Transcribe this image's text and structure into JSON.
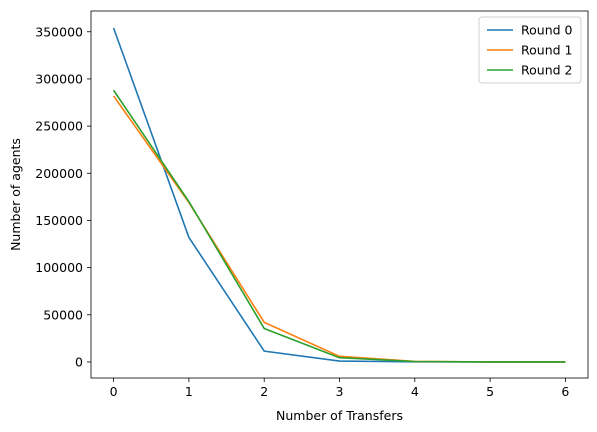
{
  "chart_data": {
    "type": "line",
    "title": "",
    "xlabel": "Number of Transfers",
    "ylabel": "Number of agents",
    "x": [
      0,
      1,
      2,
      3,
      4,
      5,
      6
    ],
    "xlim": [
      -0.3,
      6.3
    ],
    "ylim": [
      -17000,
      372000
    ],
    "xticks": [
      0,
      1,
      2,
      3,
      4,
      5,
      6
    ],
    "yticks": [
      0,
      50000,
      100000,
      150000,
      200000,
      250000,
      300000,
      350000
    ],
    "grid": false,
    "legend_position": "top-right",
    "series": [
      {
        "name": "Round 0",
        "color": "#1f77b4",
        "values": [
          354000,
          132000,
          11500,
          1000,
          100,
          10,
          0
        ]
      },
      {
        "name": "Round 1",
        "color": "#ff7f0e",
        "values": [
          282000,
          169000,
          42000,
          6000,
          600,
          60,
          5
        ]
      },
      {
        "name": "Round 2",
        "color": "#2ca02c",
        "values": [
          288000,
          170000,
          35500,
          4500,
          500,
          50,
          5
        ]
      }
    ]
  }
}
